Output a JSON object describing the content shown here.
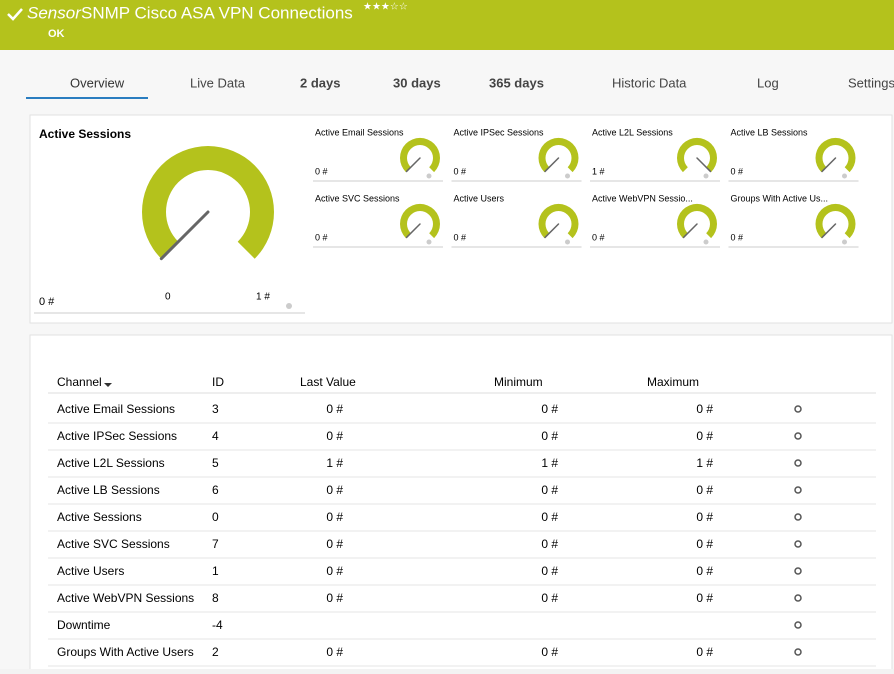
{
  "header": {
    "prefix": "Sensor",
    "title": "SNMP Cisco ASA VPN Connections",
    "status": "OK"
  },
  "tabs": [
    "Overview",
    "Live Data",
    "2  days",
    "30 days",
    "365 days",
    "Historic Data",
    "Log",
    "Settings"
  ],
  "main_gauge": {
    "label": "Active Sessions",
    "value": "0 #",
    "min": "0",
    "max": "1 #"
  },
  "gauges": [
    {
      "label": "Active Email Sessions",
      "value": "0 #"
    },
    {
      "label": "Active IPSec Sessions",
      "value": "0 #"
    },
    {
      "label": "Active L2L Sessions",
      "value": "1 #"
    },
    {
      "label": "Active LB Sessions",
      "value": "0 #"
    },
    {
      "label": "Active SVC Sessions",
      "value": "0 #"
    },
    {
      "label": "Active Users",
      "value": "0 #"
    },
    {
      "label": "Active WebVPN Sessio...",
      "value": "0 #"
    },
    {
      "label": "Groups With Active Us...",
      "value": "0 #"
    }
  ],
  "table": {
    "columns": [
      "Channel",
      "ID",
      "Last Value",
      "Minimum",
      "Maximum"
    ],
    "rows": [
      [
        "Active Email Sessions",
        "3",
        "0 #",
        "0 #",
        "0 #"
      ],
      [
        "Active IPSec Sessions",
        "4",
        "0 #",
        "0 #",
        "0 #"
      ],
      [
        "Active L2L Sessions",
        "5",
        "1 #",
        "1 #",
        "1 #"
      ],
      [
        "Active LB Sessions",
        "6",
        "0 #",
        "0 #",
        "0 #"
      ],
      [
        "Active Sessions",
        "0",
        "0 #",
        "0 #",
        "0 #"
      ],
      [
        "Active SVC Sessions",
        "7",
        "0 #",
        "0 #",
        "0 #"
      ],
      [
        "Active Users",
        "1",
        "0 #",
        "0 #",
        "0 #"
      ],
      [
        "Active WebVPN Sessions",
        "8",
        "0 #",
        "0 #",
        "0 #"
      ],
      [
        "Downtime",
        "-4",
        null,
        null,
        null
      ],
      [
        "Groups With Active Users",
        "2",
        "0 #",
        "0 #",
        "0 #"
      ]
    ]
  }
}
